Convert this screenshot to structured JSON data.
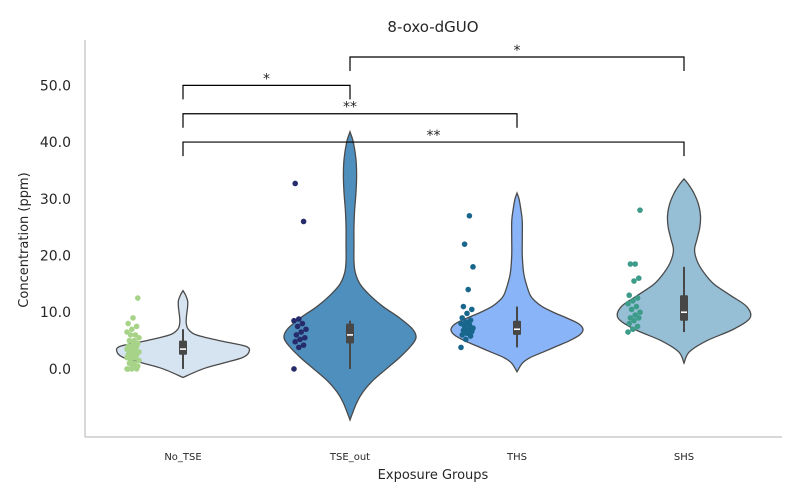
{
  "chart_data": {
    "type": "violin",
    "title": "8-oxo-dGUO",
    "xlabel": "Exposure Groups",
    "ylabel": "Concentration (ppm)",
    "ylim": [
      -12,
      58
    ],
    "yticks": [
      0,
      10,
      20,
      30,
      40,
      50
    ],
    "ytick_labels": [
      "0.0",
      "10.0",
      "20.0",
      "30.0",
      "40.0",
      "50.0"
    ],
    "grid": false,
    "categories": [
      "No_TSE",
      "TSE_out",
      "THS",
      "SHS"
    ],
    "violin_colors": [
      "#d6e4f2",
      "#4f8fbe",
      "#8ab4f8",
      "#96bfd6"
    ],
    "point_colors": [
      "#a6d388",
      "#262b6b",
      "#19668c",
      "#3d9b8a"
    ],
    "groups": [
      {
        "name": "No_TSE",
        "density": [
          [
            -1.5,
            0.0
          ],
          [
            0,
            0.3
          ],
          [
            1,
            0.6
          ],
          [
            2,
            0.9
          ],
          [
            3,
            1.0
          ],
          [
            4,
            0.95
          ],
          [
            5,
            0.55
          ],
          [
            6,
            0.2
          ],
          [
            7,
            0.08
          ],
          [
            8,
            0.05
          ],
          [
            9,
            0.05
          ],
          [
            10,
            0.06
          ],
          [
            11,
            0.07
          ],
          [
            12,
            0.07
          ],
          [
            13,
            0.04
          ],
          [
            13.8,
            0.0
          ]
        ],
        "box": {
          "q1": 2.5,
          "median": 3.5,
          "q3": 5.0,
          "whisker_low": 0.0,
          "whisker_high": 7.0
        },
        "points": [
          0,
          0,
          0,
          0,
          0.5,
          0.5,
          1,
          1,
          1.5,
          1.5,
          2,
          2,
          2,
          2.5,
          2.5,
          2.5,
          3,
          3,
          3,
          3,
          3.5,
          3.5,
          3.5,
          4,
          4,
          4,
          4.5,
          4.5,
          5,
          5,
          5.5,
          6,
          6,
          6.5,
          7,
          7.5,
          8,
          9,
          12.5
        ]
      },
      {
        "name": "TSE_out",
        "density": [
          [
            -9,
            0.0
          ],
          [
            -6,
            0.1
          ],
          [
            -4,
            0.2
          ],
          [
            -2,
            0.35
          ],
          [
            0,
            0.55
          ],
          [
            2,
            0.75
          ],
          [
            4,
            0.92
          ],
          [
            5.5,
            1.0
          ],
          [
            7,
            0.95
          ],
          [
            9,
            0.75
          ],
          [
            11,
            0.5
          ],
          [
            13,
            0.3
          ],
          [
            15,
            0.15
          ],
          [
            17,
            0.08
          ],
          [
            19,
            0.06
          ],
          [
            22,
            0.06
          ],
          [
            25,
            0.06
          ],
          [
            28,
            0.07
          ],
          [
            31,
            0.09
          ],
          [
            34,
            0.1
          ],
          [
            37,
            0.09
          ],
          [
            40,
            0.05
          ],
          [
            41.8,
            0.0
          ]
        ],
        "box": {
          "q1": 4.5,
          "median": 6.0,
          "q3": 8.0,
          "whisker_low": 0.0,
          "whisker_high": 8.5
        },
        "points": [
          0,
          3.8,
          4.2,
          4.8,
          5.2,
          5.5,
          6,
          6.5,
          7,
          7.5,
          8,
          8.5,
          8.8,
          26,
          32.7
        ]
      },
      {
        "name": "THS",
        "density": [
          [
            -0.5,
            0.0
          ],
          [
            1,
            0.08
          ],
          [
            2,
            0.2
          ],
          [
            3,
            0.4
          ],
          [
            4,
            0.6
          ],
          [
            5,
            0.8
          ],
          [
            6,
            0.95
          ],
          [
            7,
            1.0
          ],
          [
            8,
            0.93
          ],
          [
            9,
            0.75
          ],
          [
            10,
            0.55
          ],
          [
            11,
            0.38
          ],
          [
            12,
            0.27
          ],
          [
            13,
            0.2
          ],
          [
            15,
            0.14
          ],
          [
            17,
            0.1
          ],
          [
            20,
            0.08
          ],
          [
            23,
            0.08
          ],
          [
            26,
            0.08
          ],
          [
            28,
            0.06
          ],
          [
            30,
            0.03
          ],
          [
            31,
            0.0
          ]
        ],
        "box": {
          "q1": 6.0,
          "median": 7.0,
          "q3": 8.5,
          "whisker_low": 3.8,
          "whisker_high": 11.0
        },
        "points": [
          3.8,
          5.2,
          5.8,
          6,
          6.3,
          6.6,
          6.8,
          7,
          7.2,
          7.5,
          7.8,
          8,
          8.3,
          8.6,
          9,
          9.8,
          10.5,
          11,
          14,
          18,
          22,
          27
        ]
      },
      {
        "name": "SHS",
        "density": [
          [
            1,
            0.0
          ],
          [
            3,
            0.08
          ],
          [
            5,
            0.35
          ],
          [
            7,
            0.75
          ],
          [
            9,
            1.0
          ],
          [
            11,
            0.95
          ],
          [
            13,
            0.7
          ],
          [
            15,
            0.45
          ],
          [
            17,
            0.3
          ],
          [
            19,
            0.2
          ],
          [
            21,
            0.16
          ],
          [
            23,
            0.2
          ],
          [
            25,
            0.24
          ],
          [
            27,
            0.25
          ],
          [
            29,
            0.22
          ],
          [
            31,
            0.15
          ],
          [
            32.5,
            0.07
          ],
          [
            33.5,
            0.0
          ]
        ],
        "box": {
          "q1": 8.5,
          "median": 10.0,
          "q3": 13.0,
          "whisker_low": 6.5,
          "whisker_high": 18.0
        },
        "points": [
          6.5,
          7,
          7.5,
          8,
          8.5,
          9,
          9,
          9.5,
          10,
          10.5,
          11,
          11.5,
          12,
          12.5,
          13,
          15.5,
          16,
          18.5,
          18.5,
          28
        ]
      }
    ],
    "significance": [
      {
        "from": "No_TSE",
        "to": "TSE_out",
        "y": 50,
        "label": "*"
      },
      {
        "from": "TSE_out",
        "to": "SHS",
        "y": 55,
        "label": "*"
      },
      {
        "from": "No_TSE",
        "to": "THS",
        "y": 45,
        "label": "**"
      },
      {
        "from": "No_TSE",
        "to": "SHS",
        "y": 40,
        "label": "**"
      }
    ]
  }
}
